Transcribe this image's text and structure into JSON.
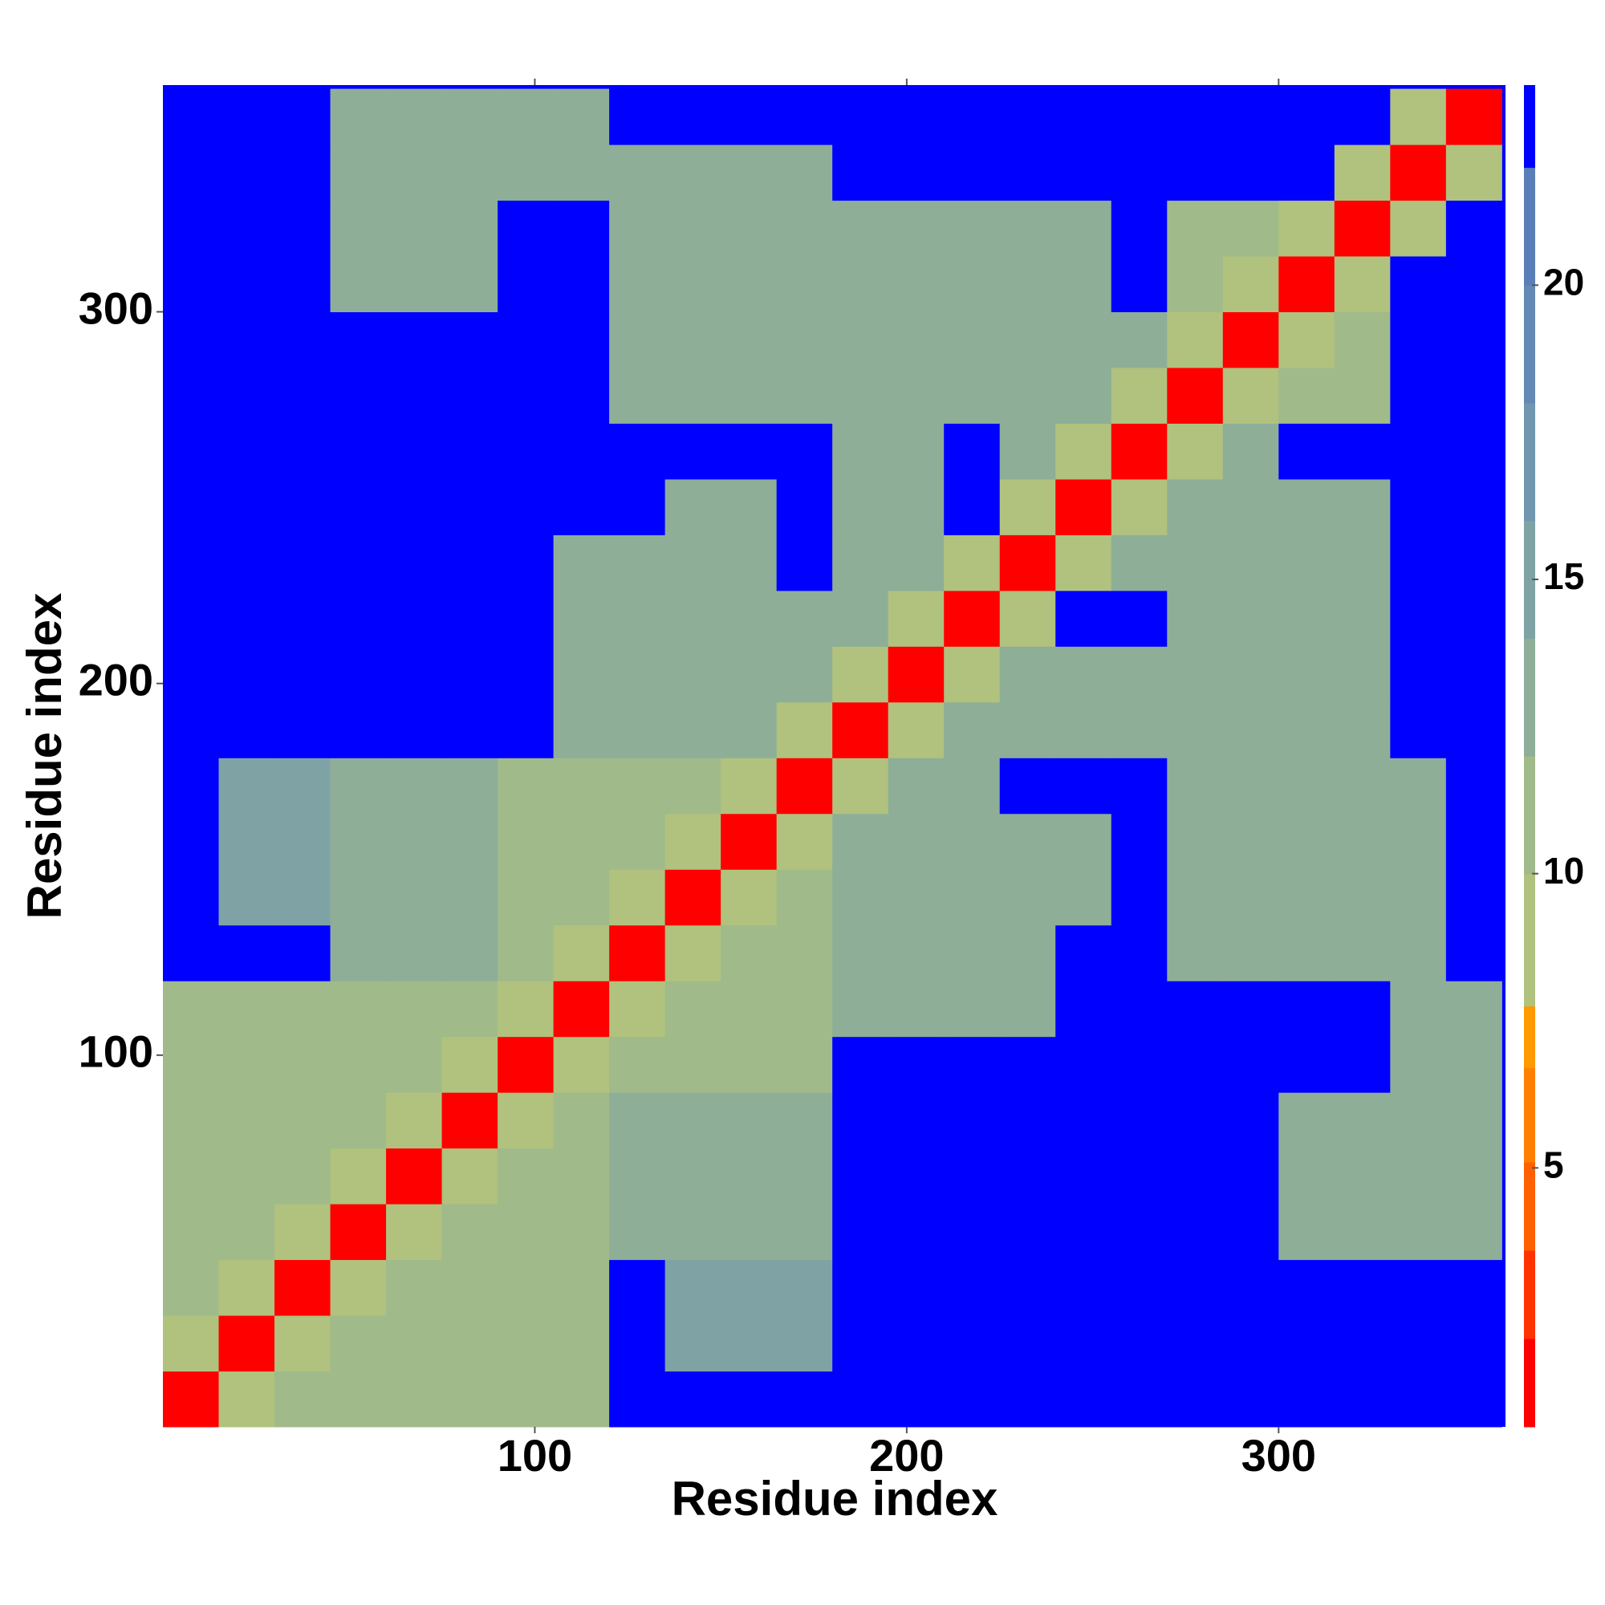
{
  "chart_data": {
    "type": "heatmap",
    "xlabel": "Residue index",
    "ylabel": "Residue index",
    "x": [
      7.5,
      22.5,
      37.5,
      52.5,
      67.5,
      82.5,
      97.5,
      112.5,
      127.5,
      142.5,
      157.5,
      172.5,
      187.5,
      202.5,
      217.5,
      232.5,
      247.5,
      262.5,
      277.5,
      292.5,
      307.5,
      322.5,
      337.5,
      352.5
    ],
    "y": [
      7.5,
      22.5,
      37.5,
      52.5,
      67.5,
      82.5,
      97.5,
      112.5,
      127.5,
      142.5,
      157.5,
      172.5,
      187.5,
      202.5,
      217.5,
      232.5,
      247.5,
      262.5,
      277.5,
      292.5,
      307.5,
      322.5,
      337.5,
      352.5
    ],
    "z": [
      [
        2,
        8,
        10,
        10,
        10,
        11,
        11,
        11,
        23,
        23,
        23,
        23,
        23,
        23,
        23,
        23,
        23,
        23,
        23,
        23,
        23,
        23,
        23,
        23
      ],
      [
        8,
        2,
        8,
        10,
        10,
        11,
        11,
        11,
        23,
        14,
        14,
        14,
        23,
        23,
        23,
        23,
        23,
        23,
        23,
        23,
        23,
        23,
        23,
        23
      ],
      [
        10,
        8,
        2,
        8,
        10,
        11,
        11,
        11,
        23,
        14,
        14,
        14,
        23,
        23,
        23,
        23,
        23,
        23,
        23,
        23,
        23,
        23,
        23,
        23
      ],
      [
        10,
        10,
        8,
        2,
        8,
        11,
        11,
        11,
        12,
        12,
        12,
        12,
        23,
        23,
        23,
        23,
        23,
        23,
        23,
        23,
        12,
        12,
        12,
        12
      ],
      [
        10,
        10,
        10,
        8,
        2,
        8,
        11,
        11,
        12,
        12,
        12,
        12,
        23,
        23,
        23,
        23,
        23,
        23,
        23,
        23,
        12,
        12,
        12,
        12
      ],
      [
        11,
        11,
        11,
        11,
        8,
        2,
        8,
        11,
        12,
        12,
        12,
        12,
        23,
        23,
        23,
        23,
        23,
        23,
        23,
        23,
        12,
        12,
        12,
        12
      ],
      [
        11,
        11,
        11,
        11,
        11,
        8,
        2,
        8,
        11,
        11,
        11,
        11,
        23,
        23,
        23,
        23,
        23,
        23,
        23,
        23,
        23,
        23,
        12,
        12
      ],
      [
        11,
        11,
        11,
        11,
        11,
        11,
        8,
        2,
        8,
        11,
        11,
        11,
        12,
        12,
        12,
        12,
        23,
        23,
        23,
        23,
        23,
        23,
        12,
        12
      ],
      [
        23,
        23,
        23,
        12,
        12,
        12,
        11,
        8,
        2,
        8,
        11,
        11,
        12,
        12,
        12,
        12,
        23,
        23,
        13,
        13,
        12,
        12,
        12,
        23
      ],
      [
        23,
        14,
        14,
        12,
        12,
        12,
        11,
        11,
        8,
        2,
        8,
        11,
        12,
        12,
        12,
        12,
        12,
        23,
        13,
        13,
        12,
        12,
        12,
        23
      ],
      [
        23,
        14,
        14,
        12,
        12,
        12,
        11,
        11,
        11,
        8,
        2,
        8,
        12,
        12,
        12,
        12,
        12,
        23,
        13,
        13,
        13,
        13,
        13,
        23
      ],
      [
        23,
        14,
        14,
        12,
        12,
        12,
        11,
        11,
        11,
        11,
        8,
        2,
        8,
        12,
        12,
        23,
        23,
        23,
        13,
        13,
        13,
        13,
        13,
        23
      ],
      [
        23,
        23,
        23,
        23,
        23,
        23,
        23,
        12,
        12,
        12,
        12,
        8,
        2,
        8,
        12,
        12,
        12,
        12,
        12,
        12,
        12,
        12,
        23,
        23
      ],
      [
        23,
        23,
        23,
        23,
        23,
        23,
        23,
        12,
        12,
        12,
        12,
        12,
        8,
        2,
        8,
        12,
        12,
        12,
        12,
        12,
        12,
        12,
        23,
        23
      ],
      [
        23,
        23,
        23,
        23,
        23,
        23,
        23,
        12,
        12,
        12,
        12,
        12,
        12,
        8,
        2,
        8,
        23,
        23,
        12,
        12,
        12,
        12,
        23,
        23
      ],
      [
        23,
        23,
        23,
        23,
        23,
        23,
        23,
        12,
        12,
        12,
        12,
        23,
        12,
        12,
        8,
        2,
        8,
        12,
        12,
        12,
        12,
        12,
        23,
        23
      ],
      [
        23,
        23,
        23,
        23,
        23,
        23,
        23,
        23,
        23,
        12,
        12,
        23,
        12,
        12,
        23,
        8,
        2,
        8,
        12,
        12,
        12,
        12,
        23,
        23
      ],
      [
        23,
        23,
        23,
        23,
        23,
        23,
        23,
        23,
        23,
        23,
        23,
        23,
        12,
        12,
        23,
        12,
        8,
        2,
        8,
        12,
        23,
        23,
        23,
        23
      ],
      [
        23,
        23,
        23,
        23,
        23,
        23,
        23,
        23,
        13,
        13,
        13,
        13,
        12,
        12,
        12,
        12,
        12,
        8,
        2,
        8,
        10,
        10,
        23,
        23
      ],
      [
        23,
        23,
        23,
        23,
        23,
        23,
        23,
        23,
        13,
        13,
        13,
        13,
        12,
        12,
        12,
        12,
        12,
        12,
        8,
        2,
        8,
        10,
        23,
        23
      ],
      [
        23,
        23,
        23,
        12,
        12,
        12,
        23,
        23,
        12,
        12,
        13,
        13,
        12,
        12,
        12,
        12,
        12,
        23,
        10,
        8,
        2,
        8,
        23,
        23
      ],
      [
        23,
        23,
        23,
        12,
        12,
        12,
        23,
        23,
        12,
        12,
        13,
        13,
        12,
        12,
        12,
        12,
        12,
        23,
        10,
        10,
        8,
        2,
        8,
        23
      ],
      [
        23,
        23,
        23,
        12,
        12,
        12,
        12,
        12,
        12,
        12,
        13,
        13,
        23,
        23,
        23,
        23,
        23,
        23,
        23,
        23,
        23,
        8,
        2,
        8
      ],
      [
        23,
        23,
        23,
        12,
        12,
        12,
        12,
        12,
        23,
        23,
        23,
        23,
        23,
        23,
        23,
        23,
        23,
        23,
        23,
        23,
        23,
        23,
        8,
        2
      ]
    ],
    "xlim": [
      0,
      361
    ],
    "ylim": [
      0,
      361
    ],
    "xticks": [
      100,
      200,
      300
    ],
    "yticks": [
      100,
      200,
      300
    ],
    "background": "#0000ff",
    "colorbar": {
      "zlim": [
        0.6,
        23.4
      ],
      "ticks": [
        5,
        10,
        15,
        20
      ],
      "bands": [
        {
          "to": 2.1,
          "color": "#ff0000"
        },
        {
          "to": 3.6,
          "color": "#ff3300"
        },
        {
          "to": 5.1,
          "color": "#ff6000"
        },
        {
          "to": 6.7,
          "color": "#ff8000"
        },
        {
          "to": 7.75,
          "color": "#ff9900"
        },
        {
          "to": 10,
          "color": "#b0c27e"
        },
        {
          "to": 12,
          "color": "#a0ba8a"
        },
        {
          "to": 14,
          "color": "#8eae98"
        },
        {
          "to": 16,
          "color": "#7fa3a5"
        },
        {
          "to": 18,
          "color": "#7196b0"
        },
        {
          "to": 20,
          "color": "#6489b5"
        },
        {
          "to": 22,
          "color": "#5a7fb8"
        },
        {
          "color": "#0000ff"
        }
      ]
    }
  }
}
